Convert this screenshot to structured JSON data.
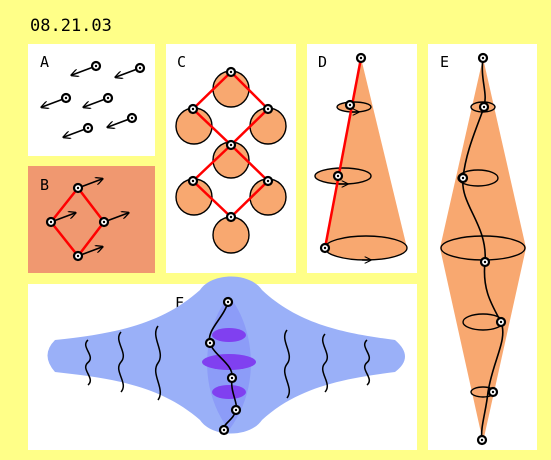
{
  "header": {
    "title": "08.21.03"
  },
  "panels": {
    "a": {
      "label": "A"
    },
    "b": {
      "label": "B"
    },
    "c": {
      "label": "C"
    },
    "d": {
      "label": "D"
    },
    "e": {
      "label": "E"
    },
    "f": {
      "label": "F"
    }
  },
  "colors": {
    "frame": "#ffff88",
    "panel": "#ffffff",
    "orange": "#f8a870",
    "salmon": "#f09870",
    "red": "#ff0000",
    "blue_light": "#9ab0f8",
    "blue_mid": "#8c9cf8",
    "violet": "#8040f0",
    "ink": "#000000"
  },
  "icons": {
    "point": "black-ring-dot",
    "spin": "arrow-vector"
  }
}
